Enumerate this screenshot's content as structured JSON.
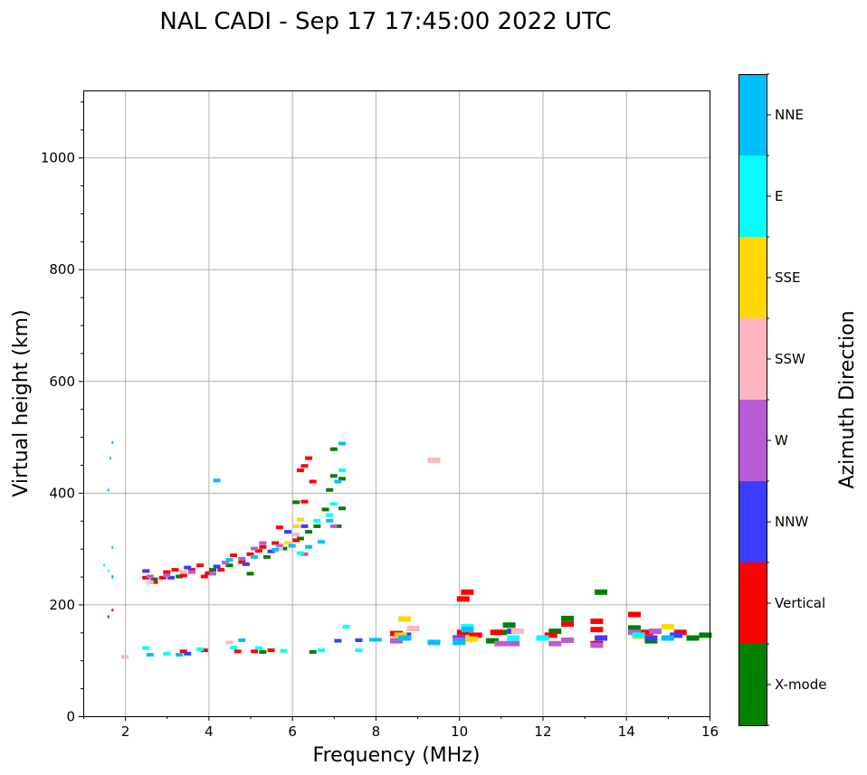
{
  "chart_data": {
    "type": "scatter",
    "title": "NAL CADI - Sep 17 17:45:00 2022 UTC",
    "xlabel": "Frequency (MHz)",
    "ylabel": "Virtual height (km)",
    "xlim": [
      1,
      16
    ],
    "ylim": [
      0,
      1120
    ],
    "xticks": [
      2,
      4,
      6,
      8,
      10,
      12,
      14,
      16
    ],
    "yticks": [
      0,
      200,
      400,
      600,
      800,
      1000
    ],
    "grid": true,
    "colorbar": {
      "title": "Azimuth Direction",
      "categories": [
        {
          "name": "X-mode",
          "color": "#008000"
        },
        {
          "name": "Vertical",
          "color": "#ff0000"
        },
        {
          "name": "NNW",
          "color": "#3c3cff"
        },
        {
          "name": "W",
          "color": "#b85cd6"
        },
        {
          "name": "SSW",
          "color": "#ffb6c1"
        },
        {
          "name": "SSE",
          "color": "#ffd700"
        },
        {
          "name": "E",
          "color": "#00ffff"
        },
        {
          "name": "NNE",
          "color": "#00bfff"
        }
      ]
    },
    "series": [
      {
        "name": "X-mode",
        "points": [
          [
            2.7,
            245
          ],
          [
            3.3,
            250
          ],
          [
            4.1,
            262
          ],
          [
            4.5,
            270
          ],
          [
            5.0,
            255
          ],
          [
            5.4,
            285
          ],
          [
            5.8,
            300
          ],
          [
            6.2,
            318
          ],
          [
            6.4,
            330
          ],
          [
            6.6,
            340
          ],
          [
            6.8,
            370
          ],
          [
            6.9,
            405
          ],
          [
            7.0,
            430
          ],
          [
            7.0,
            478
          ],
          [
            7.1,
            340
          ],
          [
            7.2,
            425
          ],
          [
            7.2,
            372
          ],
          [
            6.1,
            383
          ],
          [
            6.5,
            115
          ],
          [
            5.3,
            115
          ],
          [
            8.7,
            140
          ],
          [
            10.8,
            135
          ],
          [
            11.0,
            150
          ],
          [
            11.2,
            163
          ],
          [
            12.3,
            152
          ],
          [
            12.6,
            175
          ],
          [
            13.4,
            222
          ],
          [
            14.2,
            158
          ],
          [
            14.6,
            135
          ],
          [
            15.0,
            140
          ],
          [
            15.6,
            140
          ],
          [
            15.9,
            145
          ]
        ]
      },
      {
        "name": "Vertical",
        "points": [
          [
            1.6,
            178
          ],
          [
            1.7,
            190
          ],
          [
            2.5,
            248
          ],
          [
            2.7,
            240
          ],
          [
            2.9,
            248
          ],
          [
            3.0,
            258
          ],
          [
            3.2,
            262
          ],
          [
            3.4,
            252
          ],
          [
            3.6,
            262
          ],
          [
            3.8,
            270
          ],
          [
            3.9,
            250
          ],
          [
            4.0,
            256
          ],
          [
            4.3,
            262
          ],
          [
            4.6,
            288
          ],
          [
            4.8,
            276
          ],
          [
            5.0,
            290
          ],
          [
            5.2,
            296
          ],
          [
            5.3,
            303
          ],
          [
            5.6,
            310
          ],
          [
            5.7,
            338
          ],
          [
            6.1,
            315
          ],
          [
            6.2,
            440
          ],
          [
            6.3,
            448
          ],
          [
            6.4,
            462
          ],
          [
            6.5,
            420
          ],
          [
            6.3,
            384
          ],
          [
            3.4,
            116
          ],
          [
            3.9,
            118
          ],
          [
            4.7,
            116
          ],
          [
            5.1,
            116
          ],
          [
            5.5,
            118
          ],
          [
            8.5,
            148
          ],
          [
            10.1,
            210
          ],
          [
            10.2,
            222
          ],
          [
            10.1,
            150
          ],
          [
            10.4,
            145
          ],
          [
            10.9,
            150
          ],
          [
            12.2,
            145
          ],
          [
            12.6,
            165
          ],
          [
            13.3,
            170
          ],
          [
            13.3,
            155
          ],
          [
            13.3,
            130
          ],
          [
            14.2,
            182
          ],
          [
            14.5,
            150
          ],
          [
            15.3,
            150
          ]
        ]
      },
      {
        "name": "NNW",
        "points": [
          [
            2.5,
            260
          ],
          [
            3.1,
            248
          ],
          [
            3.5,
            266
          ],
          [
            4.2,
            268
          ],
          [
            4.9,
            272
          ],
          [
            5.5,
            295
          ],
          [
            5.9,
            330
          ],
          [
            6.3,
            340
          ],
          [
            3.5,
            112
          ],
          [
            7.1,
            135
          ],
          [
            7.6,
            136
          ],
          [
            8.7,
            145
          ],
          [
            10.0,
            140
          ],
          [
            11.3,
            152
          ],
          [
            13.4,
            140
          ],
          [
            14.6,
            140
          ],
          [
            15.2,
            145
          ]
        ]
      },
      {
        "name": "W",
        "points": [
          [
            2.6,
            250
          ],
          [
            3.0,
            252
          ],
          [
            3.6,
            258
          ],
          [
            4.1,
            255
          ],
          [
            4.4,
            275
          ],
          [
            4.8,
            282
          ],
          [
            5.1,
            300
          ],
          [
            5.3,
            310
          ],
          [
            5.7,
            305
          ],
          [
            6.3,
            290
          ],
          [
            7.0,
            340
          ],
          [
            8.5,
            135
          ],
          [
            10.0,
            137
          ],
          [
            11.0,
            130
          ],
          [
            11.3,
            130
          ],
          [
            12.3,
            130
          ],
          [
            12.6,
            136
          ],
          [
            13.3,
            127
          ],
          [
            14.2,
            150
          ],
          [
            14.7,
            152
          ]
        ]
      },
      {
        "name": "SSW",
        "points": [
          [
            2.0,
            106
          ],
          [
            2.6,
            240
          ],
          [
            3.4,
            258
          ],
          [
            4.5,
            132
          ],
          [
            5.7,
            300
          ],
          [
            6.1,
            325
          ],
          [
            8.9,
            157
          ],
          [
            9.4,
            458
          ],
          [
            11.4,
            152
          ]
        ]
      },
      {
        "name": "SSE",
        "points": [
          [
            6.2,
            352
          ],
          [
            6.1,
            340
          ],
          [
            5.9,
            310
          ],
          [
            8.7,
            174
          ],
          [
            8.6,
            145
          ],
          [
            10.3,
            138
          ],
          [
            14.3,
            143
          ],
          [
            15.0,
            160
          ]
        ]
      },
      {
        "name": "E",
        "points": [
          [
            1.5,
            270
          ],
          [
            1.6,
            260
          ],
          [
            1.7,
            248
          ],
          [
            2.5,
            122
          ],
          [
            3.0,
            112
          ],
          [
            3.8,
            120
          ],
          [
            4.6,
            123
          ],
          [
            5.2,
            122
          ],
          [
            6.2,
            292
          ],
          [
            6.6,
            350
          ],
          [
            6.9,
            360
          ],
          [
            7.2,
            440
          ],
          [
            7.3,
            160
          ],
          [
            7.6,
            118
          ],
          [
            5.8,
            117
          ],
          [
            6.7,
            118
          ],
          [
            7.0,
            380
          ],
          [
            10.2,
            160
          ],
          [
            11.3,
            140
          ],
          [
            12.0,
            140
          ],
          [
            14.3,
            145
          ]
        ]
      },
      {
        "name": "NNE",
        "points": [
          [
            1.6,
            405
          ],
          [
            1.65,
            462
          ],
          [
            1.7,
            490
          ],
          [
            1.7,
            302
          ],
          [
            1.7,
            250
          ],
          [
            2.6,
            110
          ],
          [
            3.3,
            110
          ],
          [
            4.2,
            422
          ],
          [
            4.5,
            280
          ],
          [
            5.1,
            285
          ],
          [
            5.6,
            298
          ],
          [
            6.0,
            305
          ],
          [
            6.4,
            303
          ],
          [
            6.7,
            312
          ],
          [
            7.1,
            420
          ],
          [
            7.2,
            488
          ],
          [
            6.9,
            350
          ],
          [
            4.8,
            136
          ],
          [
            8.0,
            137
          ],
          [
            8.7,
            140
          ],
          [
            9.4,
            132
          ],
          [
            10.0,
            132
          ],
          [
            10.2,
            155
          ],
          [
            15.0,
            140
          ]
        ]
      }
    ]
  }
}
